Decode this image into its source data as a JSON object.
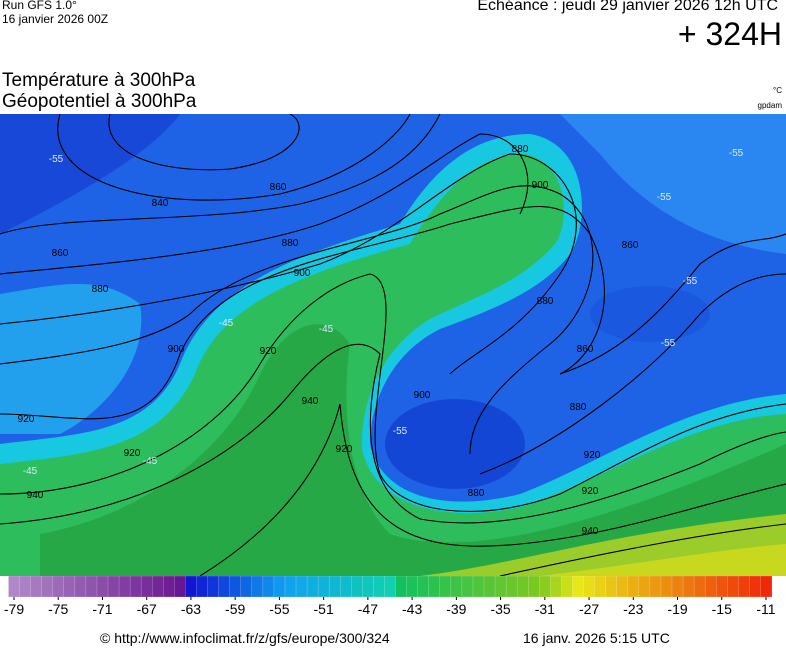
{
  "header": {
    "run": "Run GFS 1.0°",
    "date": "16 janvier 2026 00Z",
    "echeance": "Echéance : jeudi 29 janvier 2026 12h UTC",
    "lead": "+ 324H"
  },
  "title": {
    "line1": "Température à 300hPa",
    "line2": "Géopotentiel à 300hPa",
    "unit_temp": "°C",
    "unit_geo": "gpdam"
  },
  "map": {
    "contour_labels": [
      "880",
      "860",
      "840",
      "860",
      "880",
      "900",
      "880",
      "900",
      "920",
      "940",
      "920",
      "920",
      "940",
      "900",
      "920",
      "900",
      "880",
      "860",
      "880",
      "860",
      "880",
      "920",
      "940",
      "920",
      "-55",
      "-55",
      "-55",
      "-45",
      "-45",
      "-55",
      "-55",
      "-55",
      "-45",
      "-45"
    ]
  },
  "colorbar": {
    "ticks": [
      -79,
      -75,
      -71,
      -67,
      -63,
      -59,
      -55,
      -51,
      -47,
      -43,
      -39,
      -35,
      -31,
      -27,
      -23,
      -19,
      -15,
      -11
    ]
  },
  "footer": {
    "url": "© http://www.infoclimat.fr/z/gfs/europe/300/324",
    "generated": "16 janv. 2026  5:15 UTC"
  }
}
